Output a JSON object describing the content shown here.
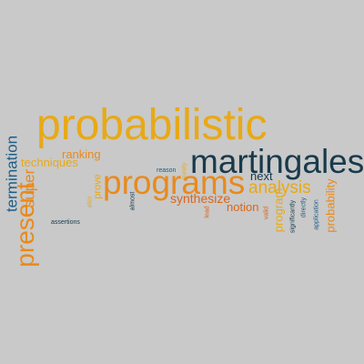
{
  "palette": {
    "background": "#c9c9c9",
    "gold": "#e8a916",
    "orange": "#e88a1c",
    "dark_teal": "#183a4b",
    "teal": "#1c5d86",
    "red_orange": "#d9651c"
  },
  "words": [
    {
      "text": "probabilistic",
      "color": "gold"
    },
    {
      "text": "martingales",
      "color": "dark_teal"
    },
    {
      "text": "programs",
      "color": "orange"
    },
    {
      "text": "present",
      "color": "orange"
    },
    {
      "text": "termination",
      "color": "teal"
    },
    {
      "text": "analysis",
      "color": "gold"
    },
    {
      "text": "super",
      "color": "orange"
    },
    {
      "text": "techniques",
      "color": "gold"
    },
    {
      "text": "ranking",
      "color": "orange"
    },
    {
      "text": "next",
      "color": "dark_teal"
    },
    {
      "text": "synthesize",
      "color": "red_orange"
    },
    {
      "text": "notion",
      "color": "red_orange"
    },
    {
      "text": "probability",
      "color": "orange"
    },
    {
      "text": "program",
      "color": "gold"
    },
    {
      "text": "prove",
      "color": "gold"
    },
    {
      "text": "reason",
      "color": "teal"
    },
    {
      "text": "almost",
      "color": "dark_teal"
    },
    {
      "text": "assertions",
      "color": "dark_teal"
    },
    {
      "text": "valid",
      "color": "red_orange"
    },
    {
      "text": "directly",
      "color": "teal"
    },
    {
      "text": "application",
      "color": "teal"
    },
    {
      "text": "surely",
      "color": "gold"
    },
    {
      "text": "also",
      "color": "gold"
    },
    {
      "text": "significantly",
      "color": "dark_teal"
    },
    {
      "text": "lead",
      "color": "red_orange"
    }
  ]
}
